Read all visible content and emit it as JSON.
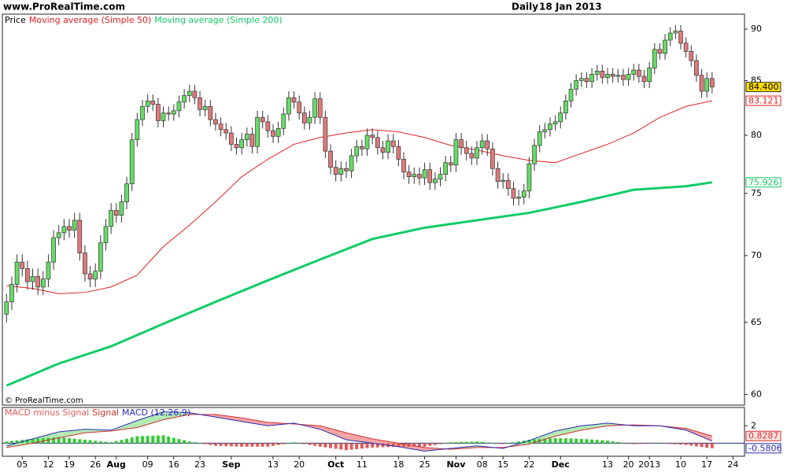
{
  "header": {
    "site": "www.ProRealTime.com",
    "period": "Daily",
    "date": "18 Jan 2013"
  },
  "chart_data": [
    {
      "type": "candlestick",
      "watermark": "© ProRealTime.com",
      "log": true,
      "grid": false,
      "xlim": [
        -0.8,
        141.2
      ],
      "ylim": [
        59.3,
        91.5
      ],
      "yticks": [
        60,
        65,
        70,
        75,
        80,
        85,
        90
      ],
      "candles": {
        "name": "Price",
        "color": "#000000",
        "up_color": "#66dd66",
        "down_color": "#e07a7a",
        "last_label": "84.400",
        "open": [
          65.6,
          66.5,
          67.8,
          69.5,
          69.0,
          68.0,
          68.4,
          67.6,
          68.2,
          69.5,
          71.4,
          71.8,
          72.3,
          72.0,
          72.8,
          70.2,
          68.6,
          68.2,
          68.8,
          71.0,
          72.3,
          73.6,
          73.2,
          74.3,
          75.8,
          79.6,
          81.4,
          82.6,
          83.1,
          82.8,
          81.3,
          82.0,
          81.9,
          82.2,
          83.0,
          83.6,
          84.0,
          83.4,
          82.3,
          82.6,
          81.4,
          81.0,
          80.5,
          80.2,
          79.2,
          78.9,
          79.6,
          80.1,
          79.0,
          81.6,
          81.2,
          80.4,
          79.9,
          80.6,
          81.9,
          83.4,
          83.0,
          82.0,
          81.1,
          81.6,
          83.3,
          81.6,
          78.6,
          77.2,
          76.6,
          77.1,
          76.9,
          78.2,
          79.0,
          78.8,
          80.0,
          79.8,
          78.9,
          78.5,
          79.5,
          79.0,
          77.9,
          76.8,
          76.4,
          76.6,
          76.3,
          77.0,
          75.9,
          76.2,
          76.6,
          77.6,
          77.4,
          79.6,
          78.9,
          78.4,
          78.0,
          78.9,
          79.5,
          78.8,
          77.1,
          76.0,
          76.1,
          75.4,
          74.6,
          74.7,
          75.2,
          77.5,
          79.1,
          80.3,
          80.5,
          81.0,
          81.2,
          82.0,
          83.1,
          84.2,
          85.0,
          85.2,
          84.9,
          85.6,
          85.9,
          85.3,
          85.6,
          85.4,
          85.5,
          85.1,
          85.6,
          86.0,
          85.4,
          84.9,
          86.2,
          88.0,
          87.6,
          88.9,
          89.6,
          89.8,
          88.6,
          87.8,
          86.9,
          85.5,
          84.0,
          85.2
        ],
        "high": [
          67.1,
          68.4,
          70.1,
          70.1,
          69.6,
          69.0,
          69.0,
          68.8,
          70.1,
          72.0,
          72.4,
          72.9,
          72.9,
          73.4,
          73.4,
          70.8,
          69.2,
          69.4,
          71.6,
          72.9,
          74.2,
          74.2,
          74.9,
          76.4,
          80.2,
          82.0,
          83.2,
          83.7,
          83.7,
          83.4,
          82.6,
          82.6,
          82.8,
          83.6,
          84.2,
          84.6,
          84.6,
          84.0,
          83.2,
          83.2,
          82.0,
          81.6,
          81.1,
          80.8,
          79.8,
          80.2,
          80.7,
          80.7,
          82.2,
          82.2,
          81.8,
          81.0,
          81.2,
          82.5,
          84.0,
          84.0,
          83.6,
          82.6,
          82.2,
          83.9,
          83.9,
          82.2,
          79.2,
          77.8,
          77.7,
          77.7,
          78.8,
          79.6,
          79.6,
          80.6,
          80.6,
          80.4,
          79.5,
          80.1,
          80.1,
          79.6,
          78.5,
          77.4,
          77.2,
          77.2,
          77.6,
          77.6,
          76.8,
          77.2,
          78.2,
          78.2,
          80.2,
          80.2,
          79.5,
          79.0,
          79.5,
          80.1,
          80.1,
          79.4,
          77.7,
          76.7,
          76.7,
          76.0,
          75.3,
          75.8,
          78.1,
          79.7,
          80.9,
          81.1,
          81.6,
          81.8,
          82.6,
          83.7,
          84.8,
          85.6,
          85.8,
          85.8,
          86.2,
          86.5,
          86.5,
          86.2,
          86.2,
          86.1,
          86.1,
          86.2,
          86.6,
          86.6,
          86.0,
          86.8,
          88.6,
          88.6,
          89.5,
          90.2,
          90.4,
          90.4,
          89.2,
          88.4,
          87.5,
          86.1,
          85.8,
          85.8
        ],
        "low": [
          65.0,
          65.9,
          67.2,
          68.4,
          67.4,
          67.4,
          67.0,
          67.0,
          67.6,
          68.9,
          70.8,
          71.2,
          71.4,
          71.4,
          69.6,
          68.0,
          67.6,
          67.6,
          68.2,
          70.4,
          71.7,
          72.6,
          72.6,
          73.7,
          75.2,
          79.0,
          80.8,
          82.0,
          82.2,
          80.7,
          80.7,
          81.3,
          81.3,
          81.6,
          82.4,
          83.0,
          82.8,
          81.7,
          81.7,
          80.8,
          80.4,
          79.9,
          79.6,
          78.6,
          78.3,
          78.3,
          79.0,
          78.4,
          78.4,
          80.6,
          79.8,
          79.3,
          79.3,
          80.0,
          81.3,
          82.4,
          81.4,
          80.5,
          80.5,
          81.0,
          81.0,
          78.0,
          76.6,
          76.0,
          76.0,
          76.3,
          76.3,
          77.6,
          78.2,
          78.2,
          79.2,
          78.3,
          77.9,
          77.9,
          78.4,
          77.3,
          76.2,
          75.8,
          75.8,
          75.7,
          75.7,
          75.3,
          75.3,
          75.6,
          76.0,
          76.8,
          76.8,
          78.3,
          77.8,
          77.4,
          77.4,
          78.3,
          78.2,
          76.5,
          75.4,
          75.4,
          74.8,
          74.0,
          74.0,
          74.1,
          74.6,
          76.9,
          78.5,
          79.7,
          79.9,
          80.4,
          80.6,
          81.4,
          82.5,
          83.6,
          84.4,
          84.3,
          84.3,
          85.0,
          84.7,
          84.7,
          84.8,
          84.8,
          84.5,
          84.5,
          85.0,
          84.8,
          84.3,
          84.3,
          85.6,
          87.0,
          87.0,
          88.3,
          89.0,
          88.0,
          87.2,
          86.3,
          84.9,
          83.4,
          83.4,
          83.8
        ],
        "close": [
          66.5,
          67.8,
          69.5,
          69.0,
          68.0,
          68.4,
          67.6,
          68.2,
          69.5,
          71.4,
          71.8,
          72.3,
          72.0,
          72.8,
          70.2,
          68.6,
          68.2,
          68.8,
          71.0,
          72.3,
          73.6,
          73.2,
          74.3,
          75.8,
          79.6,
          81.4,
          82.6,
          83.1,
          82.8,
          81.3,
          82.0,
          81.9,
          82.2,
          83.0,
          83.6,
          84.0,
          83.4,
          82.3,
          82.6,
          81.4,
          81.0,
          80.5,
          80.2,
          79.2,
          78.9,
          79.6,
          80.1,
          79.0,
          81.6,
          81.2,
          80.4,
          79.9,
          80.6,
          81.9,
          83.4,
          83.0,
          82.0,
          81.1,
          81.6,
          83.3,
          81.6,
          78.6,
          77.2,
          76.6,
          77.1,
          76.9,
          78.2,
          79.0,
          78.8,
          80.0,
          79.8,
          78.9,
          78.5,
          79.5,
          79.0,
          77.9,
          76.8,
          76.4,
          76.6,
          76.3,
          77.0,
          75.9,
          76.2,
          76.6,
          77.6,
          77.4,
          79.6,
          78.9,
          78.4,
          78.0,
          78.9,
          79.5,
          78.8,
          77.1,
          76.0,
          76.1,
          75.4,
          74.6,
          74.7,
          75.2,
          77.5,
          79.1,
          80.3,
          80.5,
          81.0,
          81.2,
          82.0,
          83.1,
          84.2,
          85.0,
          85.2,
          84.9,
          85.6,
          85.9,
          85.3,
          85.6,
          85.4,
          85.5,
          85.1,
          85.6,
          86.0,
          85.4,
          84.9,
          86.2,
          88.0,
          87.6,
          88.9,
          89.6,
          89.8,
          88.6,
          87.8,
          86.9,
          85.5,
          84.0,
          85.2,
          84.4
        ]
      },
      "series": [
        {
          "name": "Moving average (Simple 50)",
          "color": "#e02020",
          "width": 1,
          "last_label": "83.121",
          "x": [
            0,
            5,
            10,
            15,
            20,
            25,
            30,
            35,
            40,
            45,
            50,
            55,
            60,
            65,
            70,
            75,
            80,
            85,
            90,
            95,
            100,
            105,
            110,
            115,
            120,
            125,
            130,
            135
          ],
          "values": [
            67.7,
            67.5,
            67.1,
            67.2,
            67.6,
            68.5,
            70.7,
            72.4,
            74.3,
            76.4,
            77.9,
            79.2,
            79.8,
            80.2,
            80.5,
            80.3,
            79.8,
            79.1,
            78.7,
            78.2,
            77.8,
            77.6,
            78.4,
            79.2,
            80.2,
            81.6,
            82.6,
            83.121
          ]
        },
        {
          "name": "Moving average (Simple 200)",
          "color": "#11cc66",
          "width": 3,
          "last_label": "75.926",
          "x": [
            0,
            10,
            20,
            30,
            40,
            50,
            60,
            70,
            80,
            90,
            100,
            110,
            120,
            130,
            135
          ],
          "values": [
            60.6,
            62.1,
            63.3,
            64.9,
            66.5,
            68.1,
            69.7,
            71.3,
            72.2,
            72.8,
            73.4,
            74.3,
            75.3,
            75.6,
            75.926
          ]
        }
      ]
    },
    {
      "type": "macd",
      "xlim": [
        -0.8,
        141.2
      ],
      "ylim": [
        -1.5,
        4.1
      ],
      "yticks": [
        2
      ],
      "xticks": [
        {
          "value": 3,
          "label": "05"
        },
        {
          "value": 8,
          "label": "12"
        },
        {
          "value": 12,
          "label": "19"
        },
        {
          "value": 17,
          "label": "26"
        },
        {
          "value": 21,
          "label": "Aug"
        },
        {
          "value": 27,
          "label": "09"
        },
        {
          "value": 32,
          "label": "16"
        },
        {
          "value": 37,
          "label": "23"
        },
        {
          "value": 43,
          "label": "Sep"
        },
        {
          "value": 51,
          "label": "13"
        },
        {
          "value": 56,
          "label": "20"
        },
        {
          "value": 63,
          "label": "Oct"
        },
        {
          "value": 68,
          "label": "11"
        },
        {
          "value": 75,
          "label": "18"
        },
        {
          "value": 80,
          "label": "25"
        },
        {
          "value": 86,
          "label": "Nov"
        },
        {
          "value": 91,
          "label": "08"
        },
        {
          "value": 95,
          "label": "15"
        },
        {
          "value": 100,
          "label": "22"
        },
        {
          "value": 106,
          "label": "Dec"
        },
        {
          "value": 115,
          "label": "13"
        },
        {
          "value": 119,
          "label": "20"
        },
        {
          "value": 123,
          "label": "2013"
        },
        {
          "value": 129,
          "label": "10"
        },
        {
          "value": 134,
          "label": "17"
        },
        {
          "value": 139,
          "label": "24"
        }
      ],
      "histogram": {
        "name": "MACD minus Signal",
        "color": "#33cc33",
        "negative_color": "#e05a5a",
        "last_label": "-0.5806",
        "values": [
          0.2,
          0.26,
          0.32,
          0.38,
          0.44,
          0.5,
          0.54,
          0.58,
          0.62,
          0.66,
          0.7,
          0.64,
          0.58,
          0.52,
          0.46,
          0.4,
          0.34,
          0.28,
          0.22,
          0.16,
          0.1,
          0.24,
          0.38,
          0.52,
          0.66,
          0.8,
          0.82,
          0.84,
          0.86,
          0.88,
          0.9,
          0.76,
          0.62,
          0.48,
          0.34,
          0.2,
          0.1,
          0,
          -0.1,
          -0.2,
          -0.3,
          -0.32,
          -0.34,
          -0.36,
          -0.38,
          -0.4,
          -0.4,
          -0.4,
          -0.4,
          -0.4,
          -0.4,
          -0.3,
          -0.2,
          -0.1,
          0,
          0.1,
          0,
          -0.1,
          -0.2,
          -0.3,
          -0.4,
          -0.48,
          -0.56,
          -0.64,
          -0.72,
          -0.8,
          -0.74,
          -0.68,
          -0.62,
          -0.56,
          -0.5,
          -0.48,
          -0.46,
          -0.44,
          -0.42,
          -0.4,
          -0.4,
          -0.4,
          -0.4,
          -0.4,
          -0.4,
          -0.3,
          -0.2,
          -0.1,
          0,
          0.1,
          0.12,
          0.14,
          0.16,
          0.18,
          0.2,
          0.14,
          0.08,
          0.02,
          -0.04,
          -0.1,
          0,
          0.1,
          0.2,
          0.3,
          0.4,
          0.44,
          0.48,
          0.52,
          0.56,
          0.6,
          0.58,
          0.56,
          0.54,
          0.52,
          0.5,
          0.46,
          0.42,
          0.38,
          0.34,
          0.3,
          0.22,
          0.14,
          0.06,
          -0.02,
          -0.1,
          -0.08,
          -0.06,
          -0.04,
          -0.02,
          0,
          -0.04,
          -0.08,
          -0.12,
          -0.16,
          -0.2,
          -0.28,
          -0.36,
          -0.44,
          -0.52,
          -0.5806
        ]
      },
      "series": [
        {
          "name": "Signal",
          "color": "#d03030",
          "fill": "#f4a6a6",
          "last_label": "0.8287",
          "x": [
            0,
            5,
            10,
            15,
            20,
            25,
            30,
            35,
            40,
            45,
            50,
            55,
            60,
            65,
            70,
            75,
            80,
            85,
            90,
            95,
            100,
            105,
            110,
            115,
            120,
            125,
            130,
            135
          ],
          "values": [
            -0.5,
            0.0,
            0.6,
            1.2,
            1.4,
            1.8,
            2.7,
            3.3,
            3.3,
            2.9,
            2.4,
            2.2,
            2.0,
            1.2,
            0.5,
            0.0,
            -0.5,
            -0.7,
            -0.5,
            -0.5,
            -0.1,
            0.8,
            1.5,
            2.0,
            2.1,
            2.0,
            1.7,
            0.8287
          ]
        },
        {
          "name": "MACD (12,26,9)",
          "color": "#2a2ab8",
          "fill": "#b2eab2",
          "x": [
            0,
            5,
            10,
            15,
            20,
            25,
            30,
            35,
            40,
            45,
            50,
            55,
            60,
            65,
            70,
            75,
            80,
            85,
            90,
            95,
            100,
            105,
            110,
            115,
            120,
            125,
            130,
            135
          ],
          "values": [
            -0.3,
            0.5,
            1.3,
            1.6,
            1.5,
            2.6,
            3.6,
            3.5,
            3.0,
            2.5,
            2.0,
            2.3,
            1.6,
            0.4,
            0.0,
            -0.4,
            -0.9,
            -0.6,
            -0.3,
            -0.6,
            0.3,
            1.4,
            2.0,
            2.3,
            2.0,
            2.0,
            1.5,
            0.2481
          ]
        }
      ]
    }
  ]
}
